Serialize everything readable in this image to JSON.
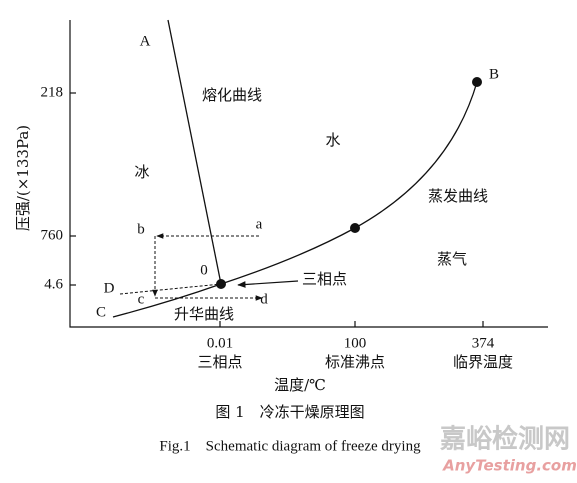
{
  "axes": {
    "y_title": "压强/(×133Pa)",
    "y_ticks": [
      "218",
      "760",
      "4.6"
    ],
    "x_title": "温度/℃",
    "x_ticks": [
      {
        "value": "0.01",
        "note": "三相点"
      },
      {
        "value": "100",
        "note": "标准沸点"
      },
      {
        "value": "374",
        "note": "临界温度"
      }
    ]
  },
  "regions": [
    "熔化曲线",
    "水",
    "冰",
    "蒸发曲线",
    "蒸气",
    "升华曲线"
  ],
  "points": [
    "A",
    "B",
    "C",
    "D",
    "0",
    "a",
    "b",
    "c",
    "d"
  ],
  "annotation": "三相点",
  "caption": {
    "cn": "图 1　冷冻干燥原理图",
    "en": "Fig.1　Schematic diagram of freeze drying"
  },
  "watermark": {
    "cn": "嘉峪检测网",
    "en": "AnyTesting.com"
  }
}
